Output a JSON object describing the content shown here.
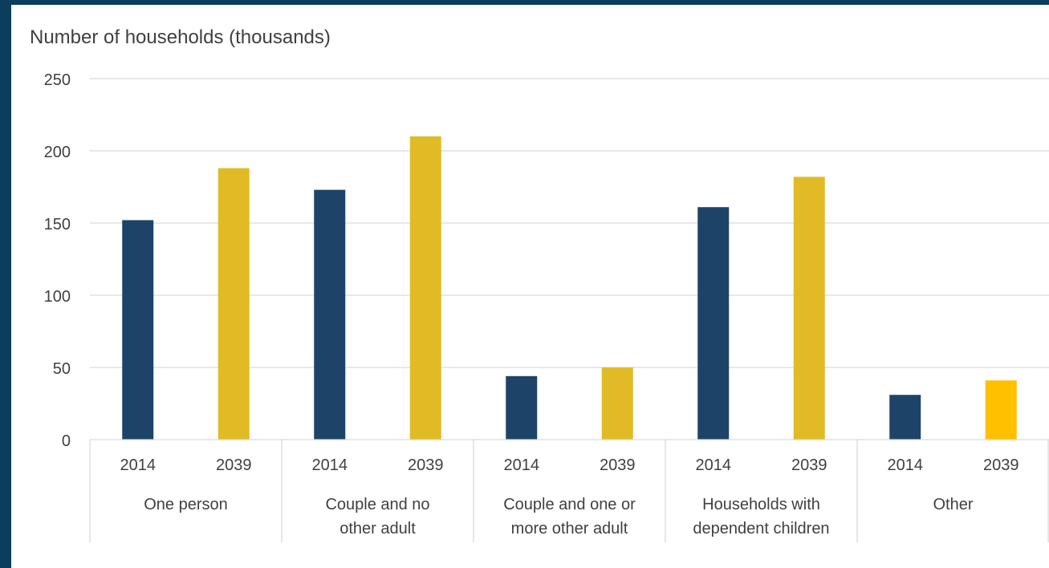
{
  "chart_data": {
    "type": "bar",
    "ylabel": "Number of households (thousands)",
    "ylim": [
      0,
      250
    ],
    "yticks": [
      0,
      50,
      100,
      150,
      200,
      250
    ],
    "groups": [
      {
        "label": [
          "One person"
        ],
        "bars": [
          {
            "x": "2014",
            "value": 152
          },
          {
            "x": "2039",
            "value": 188
          }
        ]
      },
      {
        "label": [
          "Couple and no",
          "other adult"
        ],
        "bars": [
          {
            "x": "2014",
            "value": 173
          },
          {
            "x": "2039",
            "value": 210
          }
        ]
      },
      {
        "label": [
          "Couple and one or",
          "more other adult"
        ],
        "bars": [
          {
            "x": "2014",
            "value": 44
          },
          {
            "x": "2039",
            "value": 50
          }
        ]
      },
      {
        "label": [
          "Households with",
          "dependent children"
        ],
        "bars": [
          {
            "x": "2014",
            "value": 161
          },
          {
            "x": "2039",
            "value": 182
          }
        ]
      },
      {
        "label": [
          "Other"
        ],
        "bars": [
          {
            "x": "2014",
            "value": 31
          },
          {
            "x": "2039",
            "value": 41
          }
        ]
      }
    ],
    "colors": {
      "2014": "#1d4468",
      "2039": "#e0bb26",
      "2039_last": "#ffc000",
      "grid": "#d9d9d9",
      "text": "#404040",
      "frame": "#0b3d5c"
    },
    "grid": true
  }
}
